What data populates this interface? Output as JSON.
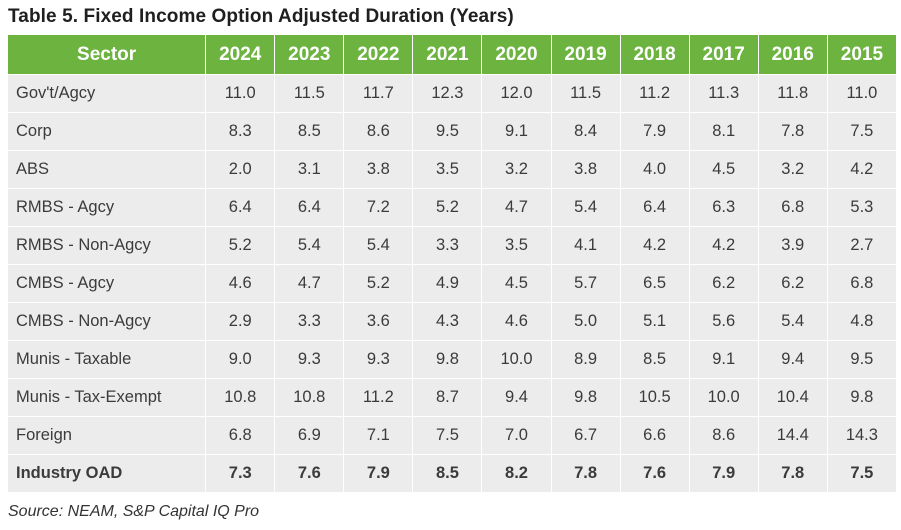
{
  "title": "Table 5. Fixed Income Option Adjusted Duration (Years)",
  "table": {
    "header_sector": "Sector",
    "years": [
      "2024",
      "2023",
      "2022",
      "2021",
      "2020",
      "2019",
      "2018",
      "2017",
      "2016",
      "2015"
    ],
    "rows": [
      {
        "sector": "Gov't/Agcy",
        "values": [
          "11.0",
          "11.5",
          "11.7",
          "12.3",
          "12.0",
          "11.5",
          "11.2",
          "11.3",
          "11.8",
          "11.0"
        ]
      },
      {
        "sector": "Corp",
        "values": [
          "8.3",
          "8.5",
          "8.6",
          "9.5",
          "9.1",
          "8.4",
          "7.9",
          "8.1",
          "7.8",
          "7.5"
        ]
      },
      {
        "sector": "ABS",
        "values": [
          "2.0",
          "3.1",
          "3.8",
          "3.5",
          "3.2",
          "3.8",
          "4.0",
          "4.5",
          "3.2",
          "4.2"
        ]
      },
      {
        "sector": "RMBS - Agcy",
        "values": [
          "6.4",
          "6.4",
          "7.2",
          "5.2",
          "4.7",
          "5.4",
          "6.4",
          "6.3",
          "6.8",
          "5.3"
        ]
      },
      {
        "sector": "RMBS - Non-Agcy",
        "values": [
          "5.2",
          "5.4",
          "5.4",
          "3.3",
          "3.5",
          "4.1",
          "4.2",
          "4.2",
          "3.9",
          "2.7"
        ]
      },
      {
        "sector": "CMBS - Agcy",
        "values": [
          "4.6",
          "4.7",
          "5.2",
          "4.9",
          "4.5",
          "5.7",
          "6.5",
          "6.2",
          "6.2",
          "6.8"
        ]
      },
      {
        "sector": "CMBS - Non-Agcy",
        "values": [
          "2.9",
          "3.3",
          "3.6",
          "4.3",
          "4.6",
          "5.0",
          "5.1",
          "5.6",
          "5.4",
          "4.8"
        ]
      },
      {
        "sector": "Munis - Taxable",
        "values": [
          "9.0",
          "9.3",
          "9.3",
          "9.8",
          "10.0",
          "8.9",
          "8.5",
          "9.1",
          "9.4",
          "9.5"
        ]
      },
      {
        "sector": "Munis - Tax-Exempt",
        "values": [
          "10.8",
          "10.8",
          "11.2",
          "8.7",
          "9.4",
          "9.8",
          "10.5",
          "10.0",
          "10.4",
          "9.8"
        ]
      },
      {
        "sector": "Foreign",
        "values": [
          "6.8",
          "6.9",
          "7.1",
          "7.5",
          "7.0",
          "6.7",
          "6.6",
          "8.6",
          "14.4",
          "14.3"
        ]
      }
    ],
    "total": {
      "sector": "Industry OAD",
      "values": [
        "7.3",
        "7.6",
        "7.9",
        "8.5",
        "8.2",
        "7.8",
        "7.6",
        "7.9",
        "7.8",
        "7.5"
      ]
    }
  },
  "source": "Source: NEAM, S&P Capital IQ Pro",
  "colors": {
    "header_bg": "#6cb33f",
    "cell_bg": "#ececec"
  }
}
